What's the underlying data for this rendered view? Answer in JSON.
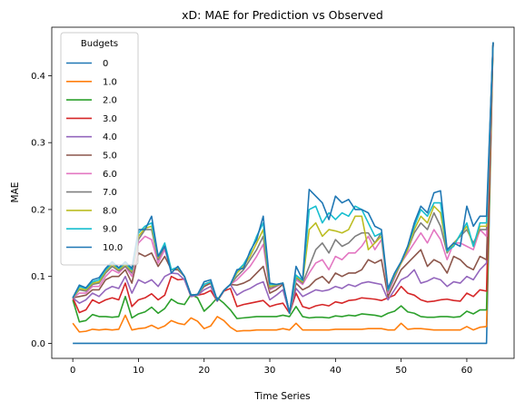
{
  "chart_data": {
    "type": "line",
    "title": "xD: MAE for Prediction vs Observed",
    "xlabel": "Time Series",
    "ylabel": "MAE",
    "xlim": [
      -3.2,
      67.2
    ],
    "ylim": [
      -0.0225,
      0.4725
    ],
    "xticks": [
      0,
      10,
      20,
      30,
      40,
      50,
      60
    ],
    "yticks": [
      0.0,
      0.1,
      0.2,
      0.3,
      0.4
    ],
    "ytick_labels": [
      "0.0",
      "0.1",
      "0.2",
      "0.3",
      "0.4"
    ],
    "grid": false,
    "legend": {
      "title": "Budgets",
      "position": "top-left"
    },
    "x": [
      0,
      1,
      2,
      3,
      4,
      5,
      6,
      7,
      8,
      9,
      10,
      11,
      12,
      13,
      14,
      15,
      16,
      17,
      18,
      19,
      20,
      21,
      22,
      23,
      24,
      25,
      26,
      27,
      28,
      29,
      30,
      31,
      32,
      33,
      34,
      35,
      36,
      37,
      38,
      39,
      40,
      41,
      42,
      43,
      44,
      45,
      46,
      47,
      48,
      49,
      50,
      51,
      52,
      53,
      54,
      55,
      56,
      57,
      58,
      59,
      60,
      61,
      62,
      63,
      64
    ],
    "series": [
      {
        "name": "0",
        "color": "#1f77b4",
        "values": [
          0,
          0,
          0,
          0,
          0,
          0,
          0,
          0,
          0,
          0,
          0,
          0,
          0,
          0,
          0,
          0,
          0,
          0,
          0,
          0,
          0,
          0,
          0,
          0,
          0,
          0,
          0,
          0,
          0,
          0,
          0,
          0,
          0,
          0,
          0,
          0,
          0,
          0,
          0,
          0,
          0,
          0,
          0,
          0,
          0,
          0,
          0,
          0,
          0,
          0,
          0,
          0,
          0,
          0,
          0,
          0,
          0,
          0,
          0,
          0,
          0,
          0,
          0,
          0,
          0.45
        ]
      },
      {
        "name": "1.0",
        "color": "#ff7f0e",
        "values": [
          0.03,
          0.017,
          0.018,
          0.021,
          0.02,
          0.021,
          0.02,
          0.021,
          0.042,
          0.02,
          0.022,
          0.023,
          0.027,
          0.022,
          0.026,
          0.034,
          0.03,
          0.028,
          0.038,
          0.033,
          0.022,
          0.026,
          0.04,
          0.034,
          0.024,
          0.018,
          0.019,
          0.019,
          0.02,
          0.02,
          0.02,
          0.02,
          0.022,
          0.02,
          0.03,
          0.02,
          0.02,
          0.02,
          0.02,
          0.02,
          0.021,
          0.021,
          0.021,
          0.021,
          0.021,
          0.022,
          0.022,
          0.022,
          0.02,
          0.02,
          0.03,
          0.021,
          0.022,
          0.022,
          0.021,
          0.02,
          0.02,
          0.02,
          0.02,
          0.02,
          0.025,
          0.02,
          0.024,
          0.025,
          0.45
        ]
      },
      {
        "name": "2.0",
        "color": "#2ca02c",
        "values": [
          0.065,
          0.032,
          0.034,
          0.043,
          0.04,
          0.04,
          0.039,
          0.04,
          0.07,
          0.038,
          0.044,
          0.047,
          0.054,
          0.045,
          0.052,
          0.066,
          0.06,
          0.058,
          0.073,
          0.068,
          0.048,
          0.057,
          0.068,
          0.06,
          0.05,
          0.037,
          0.038,
          0.039,
          0.04,
          0.04,
          0.04,
          0.04,
          0.042,
          0.04,
          0.055,
          0.04,
          0.038,
          0.039,
          0.039,
          0.038,
          0.041,
          0.04,
          0.042,
          0.041,
          0.044,
          0.043,
          0.042,
          0.04,
          0.045,
          0.048,
          0.056,
          0.047,
          0.045,
          0.04,
          0.039,
          0.039,
          0.04,
          0.04,
          0.039,
          0.04,
          0.048,
          0.044,
          0.05,
          0.05,
          0.45
        ]
      },
      {
        "name": "3.0",
        "color": "#d62728",
        "values": [
          0.068,
          0.046,
          0.05,
          0.065,
          0.06,
          0.065,
          0.068,
          0.065,
          0.09,
          0.055,
          0.065,
          0.068,
          0.074,
          0.065,
          0.072,
          0.1,
          0.095,
          0.096,
          0.07,
          0.072,
          0.074,
          0.079,
          0.063,
          0.078,
          0.082,
          0.055,
          0.058,
          0.06,
          0.062,
          0.064,
          0.055,
          0.058,
          0.06,
          0.045,
          0.075,
          0.055,
          0.052,
          0.056,
          0.058,
          0.056,
          0.062,
          0.06,
          0.064,
          0.065,
          0.068,
          0.067,
          0.066,
          0.064,
          0.068,
          0.072,
          0.085,
          0.075,
          0.072,
          0.065,
          0.062,
          0.063,
          0.065,
          0.066,
          0.064,
          0.063,
          0.075,
          0.07,
          0.08,
          0.078,
          0.45
        ]
      },
      {
        "name": "4.0",
        "color": "#9467bd",
        "values": [
          0.068,
          0.06,
          0.065,
          0.075,
          0.07,
          0.08,
          0.085,
          0.082,
          0.1,
          0.075,
          0.095,
          0.09,
          0.095,
          0.085,
          0.1,
          0.105,
          0.104,
          0.095,
          0.07,
          0.072,
          0.08,
          0.085,
          0.063,
          0.079,
          0.088,
          0.072,
          0.078,
          0.082,
          0.088,
          0.092,
          0.065,
          0.072,
          0.08,
          0.045,
          0.082,
          0.07,
          0.075,
          0.08,
          0.078,
          0.08,
          0.085,
          0.082,
          0.088,
          0.085,
          0.09,
          0.092,
          0.09,
          0.088,
          0.065,
          0.08,
          0.095,
          0.1,
          0.11,
          0.09,
          0.093,
          0.098,
          0.095,
          0.085,
          0.092,
          0.09,
          0.1,
          0.095,
          0.11,
          0.12,
          0.45
        ]
      },
      {
        "name": "5.0",
        "color": "#8c564b",
        "values": [
          0.068,
          0.07,
          0.072,
          0.08,
          0.08,
          0.095,
          0.1,
          0.1,
          0.11,
          0.09,
          0.135,
          0.13,
          0.135,
          0.115,
          0.13,
          0.11,
          0.11,
          0.1,
          0.072,
          0.073,
          0.085,
          0.09,
          0.064,
          0.079,
          0.088,
          0.087,
          0.09,
          0.095,
          0.105,
          0.115,
          0.075,
          0.08,
          0.088,
          0.045,
          0.09,
          0.08,
          0.085,
          0.095,
          0.1,
          0.09,
          0.105,
          0.1,
          0.105,
          0.105,
          0.11,
          0.125,
          0.12,
          0.125,
          0.07,
          0.09,
          0.11,
          0.12,
          0.13,
          0.14,
          0.115,
          0.125,
          0.12,
          0.105,
          0.13,
          0.125,
          0.115,
          0.11,
          0.13,
          0.125,
          0.45
        ]
      },
      {
        "name": "6.0",
        "color": "#e377c2",
        "values": [
          0.068,
          0.075,
          0.075,
          0.085,
          0.085,
          0.1,
          0.11,
          0.105,
          0.115,
          0.1,
          0.15,
          0.16,
          0.155,
          0.12,
          0.14,
          0.11,
          0.112,
          0.1,
          0.072,
          0.073,
          0.088,
          0.092,
          0.064,
          0.079,
          0.088,
          0.095,
          0.105,
          0.115,
          0.13,
          0.148,
          0.08,
          0.085,
          0.09,
          0.045,
          0.095,
          0.088,
          0.105,
          0.12,
          0.125,
          0.11,
          0.13,
          0.125,
          0.135,
          0.135,
          0.145,
          0.16,
          0.14,
          0.155,
          0.075,
          0.098,
          0.12,
          0.135,
          0.15,
          0.165,
          0.15,
          0.17,
          0.155,
          0.125,
          0.15,
          0.15,
          0.145,
          0.14,
          0.17,
          0.16,
          0.45
        ]
      },
      {
        "name": "7.0",
        "color": "#7f7f7f",
        "values": [
          0.068,
          0.08,
          0.078,
          0.088,
          0.09,
          0.105,
          0.115,
          0.108,
          0.115,
          0.105,
          0.155,
          0.17,
          0.17,
          0.125,
          0.145,
          0.11,
          0.112,
          0.1,
          0.072,
          0.073,
          0.088,
          0.092,
          0.064,
          0.079,
          0.088,
          0.1,
          0.11,
          0.125,
          0.14,
          0.16,
          0.082,
          0.086,
          0.09,
          0.045,
          0.098,
          0.09,
          0.115,
          0.14,
          0.15,
          0.135,
          0.155,
          0.145,
          0.15,
          0.16,
          0.165,
          0.165,
          0.15,
          0.165,
          0.078,
          0.1,
          0.12,
          0.14,
          0.165,
          0.18,
          0.17,
          0.195,
          0.175,
          0.135,
          0.15,
          0.16,
          0.17,
          0.15,
          0.17,
          0.17,
          0.45
        ]
      },
      {
        "name": "8.0",
        "color": "#bcbd22",
        "values": [
          0.068,
          0.082,
          0.08,
          0.09,
          0.092,
          0.108,
          0.118,
          0.11,
          0.118,
          0.108,
          0.16,
          0.172,
          0.175,
          0.128,
          0.148,
          0.11,
          0.113,
          0.1,
          0.072,
          0.073,
          0.088,
          0.092,
          0.064,
          0.079,
          0.088,
          0.105,
          0.115,
          0.13,
          0.15,
          0.17,
          0.085,
          0.087,
          0.09,
          0.045,
          0.1,
          0.092,
          0.17,
          0.18,
          0.16,
          0.17,
          0.168,
          0.165,
          0.17,
          0.19,
          0.19,
          0.14,
          0.15,
          0.16,
          0.08,
          0.102,
          0.12,
          0.14,
          0.17,
          0.19,
          0.18,
          0.205,
          0.195,
          0.137,
          0.148,
          0.162,
          0.175,
          0.145,
          0.175,
          0.175,
          0.45
        ]
      },
      {
        "name": "9.0",
        "color": "#17becf",
        "values": [
          0.068,
          0.085,
          0.082,
          0.092,
          0.095,
          0.11,
          0.12,
          0.112,
          0.12,
          0.11,
          0.165,
          0.175,
          0.18,
          0.13,
          0.15,
          0.11,
          0.114,
          0.1,
          0.072,
          0.073,
          0.088,
          0.092,
          0.064,
          0.079,
          0.088,
          0.108,
          0.118,
          0.135,
          0.16,
          0.18,
          0.088,
          0.088,
          0.09,
          0.045,
          0.102,
          0.094,
          0.2,
          0.205,
          0.18,
          0.195,
          0.185,
          0.195,
          0.19,
          0.205,
          0.2,
          0.18,
          0.16,
          0.165,
          0.08,
          0.104,
          0.122,
          0.145,
          0.175,
          0.2,
          0.19,
          0.21,
          0.21,
          0.138,
          0.145,
          0.163,
          0.18,
          0.145,
          0.18,
          0.18,
          0.45
        ]
      },
      {
        "name": "10.0",
        "color": "#1f77b4",
        "values": [
          0.068,
          0.087,
          0.083,
          0.095,
          0.098,
          0.112,
          0.122,
          0.113,
          0.122,
          0.112,
          0.17,
          0.17,
          0.19,
          0.13,
          0.145,
          0.105,
          0.115,
          0.1,
          0.072,
          0.073,
          0.092,
          0.095,
          0.064,
          0.079,
          0.088,
          0.11,
          0.112,
          0.138,
          0.155,
          0.19,
          0.09,
          0.088,
          0.09,
          0.045,
          0.115,
          0.095,
          0.23,
          0.22,
          0.21,
          0.185,
          0.22,
          0.21,
          0.215,
          0.2,
          0.2,
          0.195,
          0.175,
          0.17,
          0.082,
          0.105,
          0.122,
          0.145,
          0.18,
          0.205,
          0.195,
          0.225,
          0.228,
          0.14,
          0.15,
          0.145,
          0.205,
          0.175,
          0.19,
          0.19,
          0.45
        ]
      }
    ]
  }
}
